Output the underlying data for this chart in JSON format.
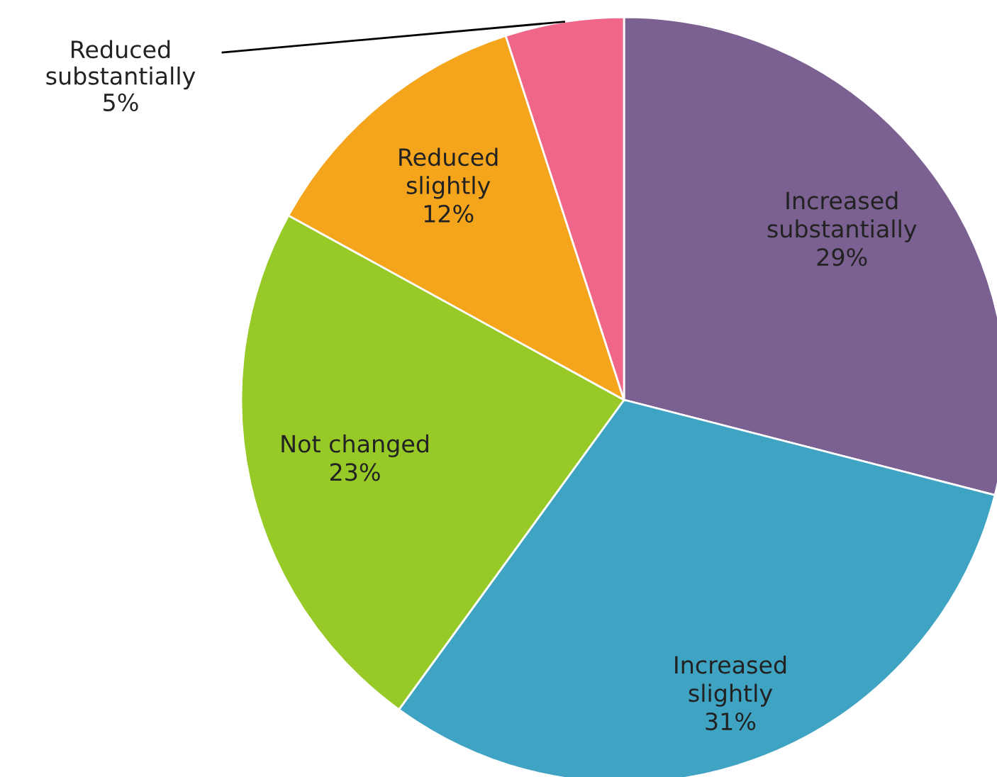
{
  "chart_data": {
    "type": "pie",
    "categories": [
      "Increased substantially",
      "Increased slightly",
      "Not changed",
      "Reduced slightly",
      "Reduced substantially"
    ],
    "values": [
      29,
      31,
      23,
      12,
      5
    ],
    "colors": [
      "#7b6192",
      "#3fa3c3",
      "#97c927",
      "#f5a51c",
      "#ef6689"
    ],
    "value_labels": [
      "29%",
      "31%",
      "23%",
      "12%",
      "5%"
    ],
    "legend": false
  }
}
